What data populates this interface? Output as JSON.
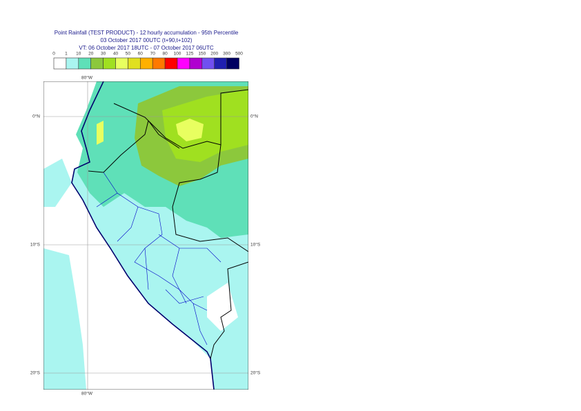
{
  "header": {
    "title": "Point Rainfall (TEST PRODUCT) - 12 hourly accumulation - 95th Percentile",
    "base_time": "03 October 2017 00UTC (t+90,t+102)",
    "valid_time": "VT: 06 October 2017 18UTC - 07 October 2017 06UTC"
  },
  "legend": {
    "labels": [
      0,
      1,
      10,
      20,
      30,
      40,
      50,
      60,
      70,
      80,
      100,
      125,
      150,
      200,
      300,
      500
    ],
    "colors": [
      "#ffffff",
      "#aaf5f0",
      "#5fe0b8",
      "#8cc83c",
      "#a0e020",
      "#e8ff60",
      "#e0e020",
      "#ffb000",
      "#ff7800",
      "#ff0000",
      "#ff00ff",
      "#b000d0",
      "#7050f0",
      "#2020b0",
      "#000060"
    ]
  },
  "map": {
    "lon_label": "80°W",
    "lat_labels": [
      "0°N",
      "10°S",
      "20°S"
    ]
  }
}
